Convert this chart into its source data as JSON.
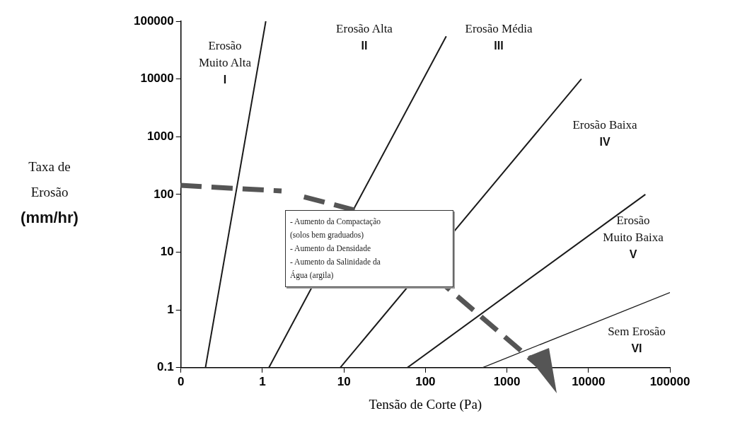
{
  "chart_data": {
    "type": "line",
    "xlabel": "Tensão de Corte (Pa)",
    "ylabel": "Taxa de\nErosão\n(mm/hr)",
    "log": "xy",
    "xlim": [
      0.1,
      100000
    ],
    "ylim": [
      0.1,
      100000
    ],
    "xticks": [
      {
        "value": 0.1,
        "label": "0"
      },
      1,
      10,
      100,
      1000,
      10000,
      100000
    ],
    "yticks": [
      0.1,
      1,
      10,
      100,
      1000,
      10000,
      100000
    ],
    "marker": "none",
    "legend": false,
    "series": [
      {
        "color": "#1a1a1a",
        "x": [
          0.2,
          1.1
        ],
        "values": [
          0.1,
          100000
        ]
      },
      {
        "color": "#1a1a1a",
        "x": [
          1.2,
          180
        ],
        "values": [
          0.1,
          55000
        ]
      },
      {
        "color": "#1a1a1a",
        "x": [
          9,
          8200
        ],
        "values": [
          0.1,
          10000
        ]
      },
      {
        "color": "#1a1a1a",
        "x": [
          60,
          50000
        ],
        "values": [
          0.1,
          100
        ]
      },
      {
        "color": "#1a1a1a",
        "x": [
          500,
          100000
        ],
        "values": [
          0.1,
          2
        ]
      }
    ],
    "annotations": [
      "Erosão\nMuito Alta\nI",
      "Erosão Alta\nII",
      "Erosão Média\nIII",
      "Erosão Baixa\nIV",
      "Erosão\nMuito Baixa\nV",
      "Sem Erosão\nVI",
      "- Aumento da Compactação\n(solos bem graduados)\n- Aumento da Densidade\n- Aumento da Salinidade da\nÁgua (argila)"
    ]
  }
}
